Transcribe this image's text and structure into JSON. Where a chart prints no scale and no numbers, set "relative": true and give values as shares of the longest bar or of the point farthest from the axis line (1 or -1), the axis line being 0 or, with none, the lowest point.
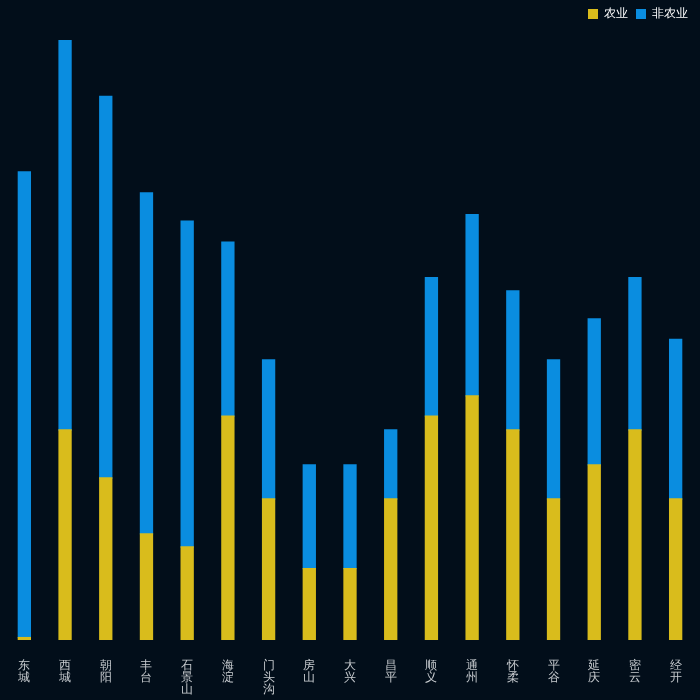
{
  "chart_data": {
    "type": "bar",
    "stacked": true,
    "relative": true,
    "legend": "top right",
    "categories": [
      "东城",
      "西城",
      "朝阳",
      "丰台",
      "石景山",
      "海淀",
      "门头沟",
      "房山",
      "大兴",
      "昌平",
      "顺义",
      "通州",
      "怀柔",
      "平谷",
      "延庆",
      "密云",
      "经开"
    ],
    "series": [
      {
        "name": "农业",
        "color": "#d9bc1c",
        "values": [
          0.004,
          0.35,
          0.27,
          0.177,
          0.155,
          0.373,
          0.235,
          0.119,
          0.119,
          0.235,
          0.373,
          0.407,
          0.35,
          0.235,
          0.292,
          0.35,
          0.235
        ]
      },
      {
        "name": "非农业",
        "color": "#0a8de0",
        "values": [
          0.776,
          0.65,
          0.636,
          0.568,
          0.543,
          0.29,
          0.232,
          0.173,
          0.173,
          0.115,
          0.231,
          0.302,
          0.232,
          0.232,
          0.243,
          0.254,
          0.266
        ]
      }
    ]
  }
}
